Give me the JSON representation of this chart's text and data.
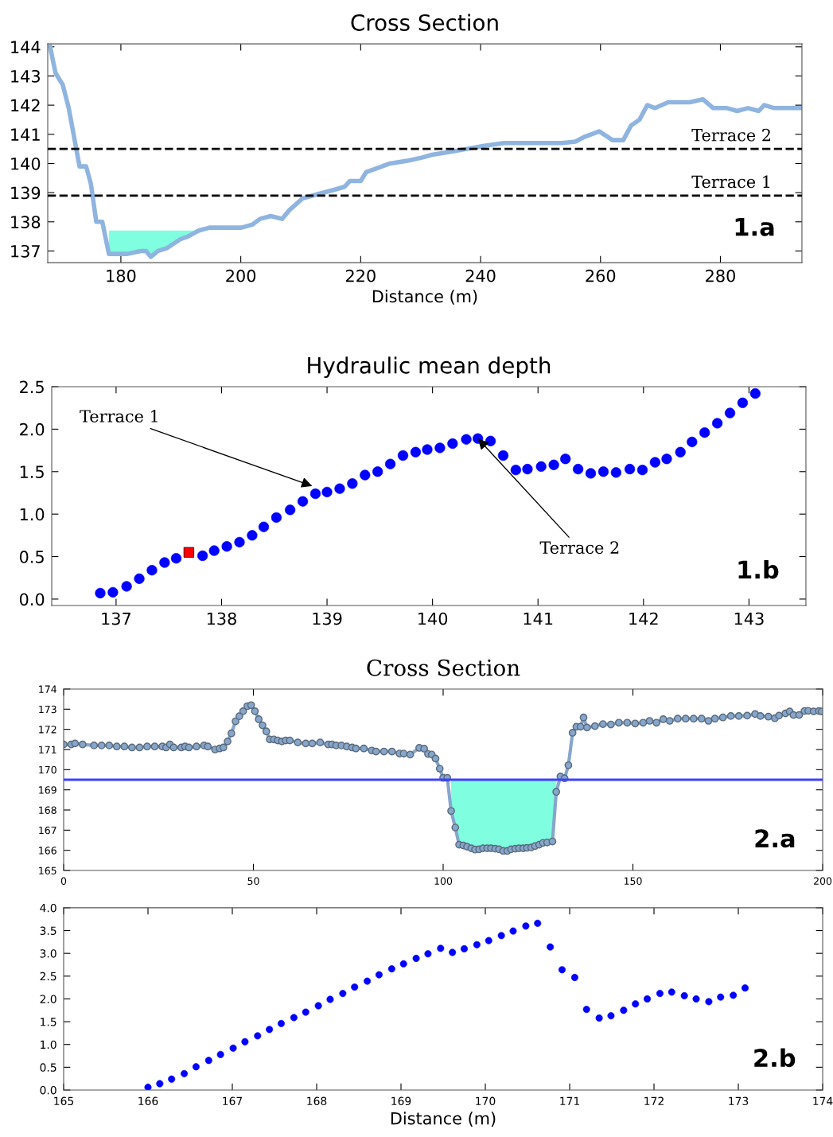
{
  "chart_data": [
    {
      "type": "line",
      "title": "Cross Section",
      "xlabel": "Distance (m)",
      "xlim": [
        167.8,
        293.6
      ],
      "ylim": [
        136.6,
        144.1
      ],
      "xticks": [
        180,
        200,
        220,
        240,
        260,
        280
      ],
      "yticks": [
        137,
        138,
        139,
        140,
        141,
        142,
        143,
        144
      ],
      "series": [
        {
          "type": "line",
          "color": "#8fb4e0",
          "x": [
            168.2,
            169.1,
            170.3,
            171.3,
            173.1,
            174.2,
            175.0,
            175.9,
            176.9,
            178.0,
            179.3,
            181.1,
            183.3,
            184.2,
            185.0,
            186.2,
            187.7,
            189.9,
            191.2,
            193.0,
            194.8,
            197.9,
            200.1,
            201.9,
            203.2,
            205.0,
            206.9,
            208.1,
            210.3,
            212.0,
            215.6,
            217.3,
            218.2,
            220.0,
            220.9,
            222.2,
            224.9,
            228.0,
            230.2,
            231.9,
            235.0,
            237.7,
            240.4,
            243.9,
            248.3,
            253.6,
            255.8,
            257.2,
            259.8,
            262.0,
            263.8,
            265.1,
            266.5,
            267.8,
            269.1,
            271.3,
            273.5,
            274.9,
            277.1,
            278.8,
            281.1,
            282.8,
            284.6,
            286.4,
            287.3,
            289.0,
            291.7,
            293.5
          ],
          "values": [
            144.0,
            143.1,
            142.7,
            141.9,
            139.9,
            139.9,
            139.3,
            138.0,
            138.0,
            136.9,
            136.9,
            136.9,
            137.0,
            137.0,
            136.8,
            137.0,
            137.1,
            137.4,
            137.5,
            137.7,
            137.8,
            137.8,
            137.8,
            137.9,
            138.1,
            138.2,
            138.1,
            138.4,
            138.8,
            138.9,
            139.1,
            139.2,
            139.4,
            139.4,
            139.7,
            139.8,
            140.0,
            140.1,
            140.2,
            140.3,
            140.4,
            140.5,
            140.6,
            140.7,
            140.7,
            140.7,
            140.75,
            140.9,
            141.1,
            140.8,
            140.8,
            141.3,
            141.5,
            142.0,
            141.9,
            142.1,
            142.1,
            142.1,
            142.2,
            141.9,
            141.9,
            141.8,
            141.9,
            141.8,
            142.0,
            141.9,
            141.9,
            141.9
          ],
          "lower": [
            null,
            null,
            null,
            null,
            null,
            null,
            null,
            null,
            null,
            136.9,
            136.9,
            136.9,
            137.0,
            137.0,
            136.8,
            137.0,
            137.1,
            137.4,
            137.5,
            137.7,
            null,
            null,
            null,
            null,
            null,
            null,
            null,
            null,
            null,
            null,
            null,
            null,
            null,
            null,
            null,
            null,
            null,
            null,
            null,
            null,
            null,
            null,
            null,
            null,
            null,
            null,
            null,
            null,
            null,
            null,
            null,
            null,
            null,
            null,
            null,
            null,
            null,
            null,
            null,
            null,
            null,
            null,
            null,
            null,
            null,
            null,
            null,
            null
          ],
          "upper": [
            null,
            null,
            null,
            null,
            null,
            null,
            null,
            null,
            null,
            137.7,
            137.7,
            137.7,
            137.7,
            137.7,
            137.7,
            137.7,
            137.7,
            137.7,
            137.7,
            137.7,
            null,
            null,
            null,
            null,
            null,
            null,
            null,
            null,
            null,
            null,
            null,
            null,
            null,
            null,
            null,
            null,
            null,
            null,
            null,
            null,
            null,
            null,
            null,
            null,
            null,
            null,
            null,
            null,
            null,
            null,
            null,
            null,
            null,
            null,
            null,
            null,
            null,
            null,
            null,
            null,
            null,
            null,
            null,
            null,
            null,
            null,
            null,
            null
          ]
        }
      ],
      "ref_lines": [
        {
          "axis": "y",
          "value": 140.5,
          "label": "Terrace 2",
          "color": "#000000",
          "line_style": "dashed"
        },
        {
          "axis": "y",
          "value": 138.9,
          "label": "Terrace 1",
          "color": "#000000",
          "line_style": "dashed"
        }
      ],
      "annotations": [
        "1.a"
      ]
    },
    {
      "type": "scatter",
      "title": "Hydraulic mean depth",
      "marker": "circle",
      "xlim": [
        136.39,
        143.54
      ],
      "ylim": [
        -0.075,
        2.5
      ],
      "xticks": [
        137,
        138,
        139,
        140,
        141,
        142,
        143
      ],
      "yticks": [
        {
          "value": 0,
          "label": "0.0"
        },
        {
          "value": 0.5,
          "label": "0.5"
        },
        {
          "value": 1,
          "label": "1.0"
        },
        {
          "value": 1.5,
          "label": "1.5"
        },
        {
          "value": 2,
          "label": "2.0"
        },
        {
          "value": 2.5,
          "label": "2.5"
        }
      ],
      "series": [
        {
          "color": "#0000ff",
          "x": [
            136.85,
            136.97,
            137.1,
            137.22,
            137.34,
            137.46,
            137.57,
            137.82,
            137.93,
            138.05,
            138.17,
            138.29,
            138.4,
            138.52,
            138.65,
            138.77,
            138.89,
            139.0,
            139.12,
            139.24,
            139.36,
            139.48,
            139.6,
            139.72,
            139.84,
            139.95,
            140.07,
            140.19,
            140.32,
            140.43,
            140.55,
            140.67,
            140.79,
            140.9,
            141.03,
            141.15,
            141.26,
            141.38,
            141.5,
            141.62,
            141.74,
            141.87,
            141.99,
            142.11,
            142.22,
            142.35,
            142.46,
            142.58,
            142.7,
            142.82,
            142.94,
            143.06
          ],
          "values": [
            0.07,
            0.08,
            0.15,
            0.24,
            0.34,
            0.43,
            0.48,
            0.51,
            0.57,
            0.62,
            0.67,
            0.75,
            0.85,
            0.96,
            1.05,
            1.15,
            1.24,
            1.26,
            1.3,
            1.36,
            1.46,
            1.5,
            1.59,
            1.69,
            1.73,
            1.76,
            1.78,
            1.83,
            1.88,
            1.89,
            1.86,
            1.69,
            1.52,
            1.53,
            1.56,
            1.58,
            1.65,
            1.53,
            1.48,
            1.5,
            1.49,
            1.53,
            1.52,
            1.61,
            1.65,
            1.73,
            1.85,
            1.96,
            2.07,
            2.19,
            2.31,
            2.42
          ]
        },
        {
          "color": "#ff0000",
          "marker": "square",
          "x": [
            137.69
          ],
          "values": [
            0.55
          ]
        }
      ],
      "annotations": [
        "1.b",
        {
          "text": "Terrace 1",
          "x": 138.86,
          "y": 1.33
        },
        {
          "text": "Terrace 2",
          "x": 140.43,
          "y": 1.89
        }
      ]
    },
    {
      "type": "line",
      "title": "Cross Section",
      "marker": "circle",
      "xlim": [
        0,
        200
      ],
      "ylim": [
        165,
        174
      ],
      "xticks": [
        0,
        50,
        100,
        150,
        200
      ],
      "yticks": [
        165,
        166,
        167,
        168,
        169,
        170,
        171,
        172,
        173,
        174
      ],
      "series": [
        {
          "type": "line",
          "color": "#86a6cc",
          "x": [
            0,
            2,
            3,
            5,
            8,
            10,
            12,
            14,
            16,
            18,
            20,
            22,
            24,
            26,
            27,
            28,
            29,
            31,
            32,
            33,
            35,
            37,
            38,
            39.9,
            41.1,
            42.1,
            43.2,
            44.2,
            45.3,
            46.3,
            47.3,
            48.4,
            49.4,
            50.4,
            51.4,
            52.4,
            53.4,
            54.3,
            55.4,
            56.4,
            57.5,
            58.5,
            59.6,
            61.7,
            63.8,
            65.5,
            67.6,
            69.7,
            70.7,
            71.8,
            73.2,
            74.6,
            76.0,
            77.0,
            79.1,
            81.2,
            82.3,
            84.4,
            86.5,
            88.5,
            89.6,
            91.3,
            93.7,
            95.0,
            96.0,
            97.0,
            98.0,
            99.1,
            100.0,
            101.1,
            102.1,
            103.2,
            104.2,
            105.3,
            106.3,
            107.4,
            108.4,
            109.5,
            110.5,
            111.6,
            112.6,
            113.7,
            114.7,
            115.8,
            116.9,
            117.9,
            119.0,
            120.0,
            121.1,
            122.1,
            123.2,
            124.2,
            125.3,
            126.3,
            127.4,
            128.8,
            129.8,
            130.9,
            132.0,
            133.0,
            134.1,
            135.1,
            136.2,
            137.0,
            137.9,
            140.0,
            142.1,
            144.2,
            146.3,
            148.5,
            150.6,
            152.7,
            154.4,
            156.2,
            158.0,
            159.7,
            161.8,
            163.9,
            166.0,
            168.1,
            169.9,
            171.6,
            173.7,
            175.8,
            177.9,
            180.1,
            182.2,
            183.6,
            185.7,
            187.4,
            188.5,
            190.2,
            191.3,
            192.3,
            193.8,
            195.2,
            196.2,
            197.6,
            199.0,
            199.7
          ],
          "values": [
            171.25,
            171.25,
            171.3,
            171.25,
            171.2,
            171.2,
            171.2,
            171.15,
            171.15,
            171.1,
            171.1,
            171.15,
            171.15,
            171.15,
            171.1,
            171.25,
            171.1,
            171.1,
            171.15,
            171.1,
            171.15,
            171.2,
            171.15,
            171.0,
            171.05,
            171.1,
            171.4,
            171.8,
            172.4,
            172.65,
            172.9,
            173.15,
            173.2,
            172.9,
            172.5,
            172.2,
            171.9,
            171.5,
            171.5,
            171.45,
            171.4,
            171.45,
            171.45,
            171.35,
            171.3,
            171.3,
            171.35,
            171.25,
            171.25,
            171.2,
            171.2,
            171.15,
            171.1,
            171.05,
            171.05,
            170.95,
            170.9,
            170.9,
            170.9,
            170.8,
            170.8,
            170.75,
            171.08,
            171.04,
            170.78,
            170.75,
            170.55,
            170.05,
            169.59,
            169.59,
            167.95,
            167.13,
            166.28,
            166.24,
            166.18,
            166.1,
            166.04,
            166.05,
            166.1,
            166.1,
            166.1,
            166.08,
            166.05,
            165.97,
            165.97,
            166.05,
            166.08,
            166.1,
            166.1,
            166.12,
            166.14,
            166.21,
            166.28,
            166.37,
            166.39,
            166.44,
            168.9,
            169.66,
            169.57,
            170.22,
            171.83,
            172.13,
            172.13,
            172.59,
            172.09,
            172.16,
            172.26,
            172.24,
            172.33,
            172.33,
            172.29,
            172.33,
            172.42,
            172.33,
            172.5,
            172.42,
            172.53,
            172.53,
            172.53,
            172.53,
            172.42,
            172.53,
            172.59,
            172.66,
            172.66,
            172.68,
            172.76,
            172.66,
            172.63,
            172.55,
            172.68,
            172.79,
            172.89,
            172.71,
            172.71,
            172.91,
            172.92,
            172.89,
            172.91,
            172.89
          ],
          "lower": [
            null,
            null,
            null,
            null,
            null,
            null,
            null,
            null,
            null,
            null,
            null,
            null,
            null,
            null,
            null,
            null,
            null,
            null,
            null,
            null,
            null,
            null,
            null,
            null,
            null,
            null,
            null,
            null,
            null,
            null,
            null,
            null,
            null,
            null,
            null,
            null,
            null,
            null,
            null,
            null,
            null,
            null,
            null,
            null,
            null,
            null,
            null,
            null,
            null,
            null,
            null,
            null,
            null,
            null,
            null,
            null,
            null,
            null,
            null,
            null,
            null,
            null,
            null,
            null,
            null,
            null,
            null,
            null,
            null,
            null,
            167.95,
            167.13,
            166.28,
            166.24,
            166.18,
            166.1,
            166.04,
            166.05,
            166.1,
            166.1,
            166.1,
            166.08,
            166.05,
            165.97,
            165.97,
            166.05,
            166.08,
            166.1,
            166.1,
            166.12,
            166.14,
            166.21,
            166.28,
            166.37,
            166.39,
            166.44,
            168.9,
            null,
            null,
            null,
            null,
            null,
            null,
            null,
            null,
            null,
            null,
            null,
            null,
            null,
            null,
            null,
            null,
            null,
            null,
            null,
            null,
            null,
            null,
            null,
            null,
            null,
            null,
            null,
            null,
            null,
            null,
            null,
            null,
            null,
            null,
            null,
            null,
            null,
            null,
            null,
            null,
            null,
            null,
            null
          ],
          "upper": [
            null,
            null,
            null,
            null,
            null,
            null,
            null,
            null,
            null,
            null,
            null,
            null,
            null,
            null,
            null,
            null,
            null,
            null,
            null,
            null,
            null,
            null,
            null,
            null,
            null,
            null,
            null,
            null,
            null,
            null,
            null,
            null,
            null,
            null,
            null,
            null,
            null,
            null,
            null,
            null,
            null,
            null,
            null,
            null,
            null,
            null,
            null,
            null,
            null,
            null,
            null,
            null,
            null,
            null,
            null,
            null,
            null,
            null,
            null,
            null,
            null,
            null,
            null,
            null,
            null,
            null,
            null,
            null,
            null,
            null,
            169.5,
            169.5,
            169.5,
            169.5,
            169.5,
            169.5,
            169.5,
            169.5,
            169.5,
            169.5,
            169.5,
            169.5,
            169.5,
            169.5,
            169.5,
            169.5,
            169.5,
            169.5,
            169.5,
            169.5,
            169.5,
            169.5,
            169.5,
            169.5,
            169.5,
            169.5,
            169.5,
            null,
            null,
            null,
            null,
            null,
            null,
            null,
            null,
            null,
            null,
            null,
            null,
            null,
            null,
            null,
            null,
            null,
            null,
            null,
            null,
            null,
            null,
            null,
            null,
            null,
            null,
            null,
            null,
            null,
            null,
            null,
            null,
            null,
            null,
            null,
            null,
            null,
            null,
            null,
            null,
            null,
            null,
            null
          ]
        }
      ],
      "ref_lines": [
        {
          "axis": "y",
          "value": 169.5,
          "color": "#3f3fff",
          "line_style": "solid"
        }
      ],
      "annotations": [
        "2.a"
      ]
    },
    {
      "type": "scatter",
      "xlabel": "Distance (m)",
      "marker": "circle",
      "xlim": [
        165,
        174
      ],
      "ylim": [
        0,
        4
      ],
      "xticks": [
        165,
        166,
        167,
        168,
        169,
        170,
        171,
        172,
        173,
        174
      ],
      "yticks": [
        {
          "value": 0,
          "label": "0.0"
        },
        {
          "value": 0.5,
          "label": "0.5"
        },
        {
          "value": 1,
          "label": "1.0"
        },
        {
          "value": 1.5,
          "label": "1.5"
        },
        {
          "value": 2,
          "label": "2.0"
        },
        {
          "value": 2.5,
          "label": "2.5"
        },
        {
          "value": 3,
          "label": "3.0"
        },
        {
          "value": 3.5,
          "label": "3.5"
        },
        {
          "value": 4,
          "label": "4.0"
        }
      ],
      "series": [
        {
          "color": "#0000ff",
          "x": [
            166.0,
            166.14,
            166.28,
            166.43,
            166.57,
            166.72,
            166.86,
            167.01,
            167.15,
            167.3,
            167.44,
            167.58,
            167.73,
            167.87,
            168.02,
            168.16,
            168.31,
            168.45,
            168.6,
            168.74,
            168.89,
            169.03,
            169.18,
            169.32,
            169.47,
            169.61,
            169.75,
            169.9,
            170.04,
            170.19,
            170.33,
            170.48,
            170.62,
            170.77,
            170.91,
            171.06,
            171.2,
            171.35,
            171.49,
            171.64,
            171.78,
            171.92,
            172.07,
            172.21,
            172.36,
            172.5,
            172.65,
            172.79,
            172.94,
            173.08
          ],
          "values": [
            0.06,
            0.14,
            0.24,
            0.36,
            0.51,
            0.65,
            0.78,
            0.92,
            1.06,
            1.19,
            1.33,
            1.46,
            1.59,
            1.71,
            1.85,
            1.99,
            2.12,
            2.26,
            2.39,
            2.53,
            2.66,
            2.77,
            2.89,
            2.99,
            3.11,
            3.02,
            3.1,
            3.19,
            3.28,
            3.39,
            3.49,
            3.6,
            3.66,
            3.14,
            2.64,
            2.47,
            1.77,
            1.58,
            1.63,
            1.75,
            1.89,
            2.0,
            2.12,
            2.15,
            2.07,
            2.0,
            1.94,
            2.04,
            2.08,
            2.24
          ]
        }
      ],
      "annotations": [
        "2.b"
      ]
    }
  ]
}
